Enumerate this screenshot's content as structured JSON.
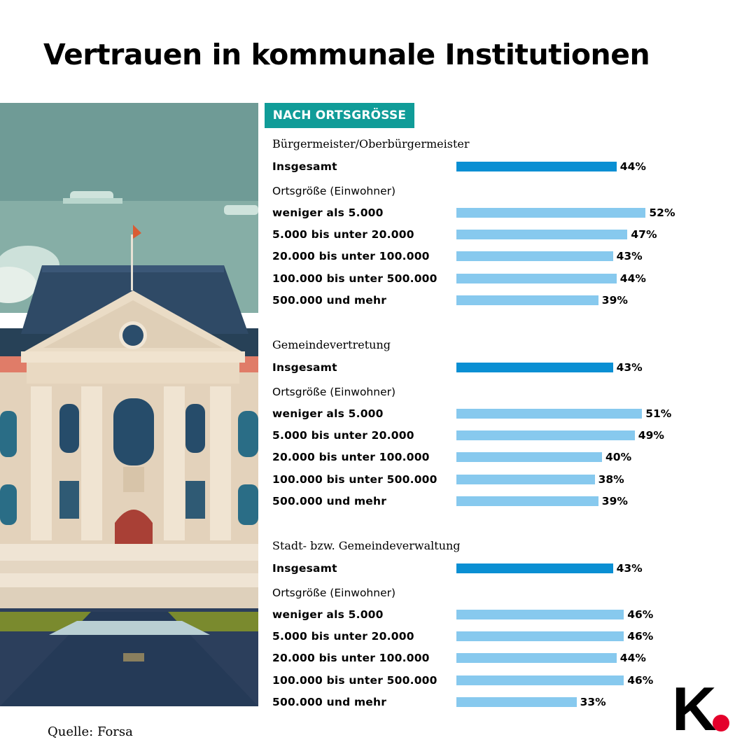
{
  "title": "Vertrauen in kommunale Institutionen",
  "badge": "NACH ORTSGRÖSSE",
  "source": "Quelle: Forsa",
  "logo_letter": "K",
  "colors": {
    "accent": "#109c98",
    "bar_total": "#0a8fd3",
    "bar_sub": "#87c9ee",
    "logo_dot": "#e4002b"
  },
  "chart_data": [
    {
      "type": "bar",
      "title": "Bürgermeister/Oberbürgermeister",
      "total_label": "Insgesamt",
      "total_value": 44,
      "group_label": "Ortsgröße (Einwohner)",
      "categories": [
        "weniger als 5.000",
        "5.000 bis unter 20.000",
        "20.000 bis unter 100.000",
        "100.000 bis unter 500.000",
        "500.000 und mehr"
      ],
      "values": [
        52,
        47,
        43,
        44,
        39
      ],
      "unit": "%"
    },
    {
      "type": "bar",
      "title": "Gemeindevertretung",
      "total_label": "Insgesamt",
      "total_value": 43,
      "group_label": "Ortsgröße (Einwohner)",
      "categories": [
        "weniger als 5.000",
        "5.000 bis unter 20.000",
        "20.000 bis unter 100.000",
        "100.000 bis unter 500.000",
        "500.000 und mehr"
      ],
      "values": [
        51,
        49,
        40,
        38,
        39
      ],
      "unit": "%"
    },
    {
      "type": "bar",
      "title": "Stadt- bzw. Gemeindeverwaltung",
      "total_label": "Insgesamt",
      "total_value": 43,
      "group_label": "Ortsgröße (Einwohner)",
      "categories": [
        "weniger als 5.000",
        "5.000 bis unter 20.000",
        "20.000 bis unter 100.000",
        "100.000 bis unter 500.000",
        "500.000 und mehr"
      ],
      "values": [
        46,
        46,
        44,
        46,
        33
      ],
      "unit": "%"
    }
  ]
}
